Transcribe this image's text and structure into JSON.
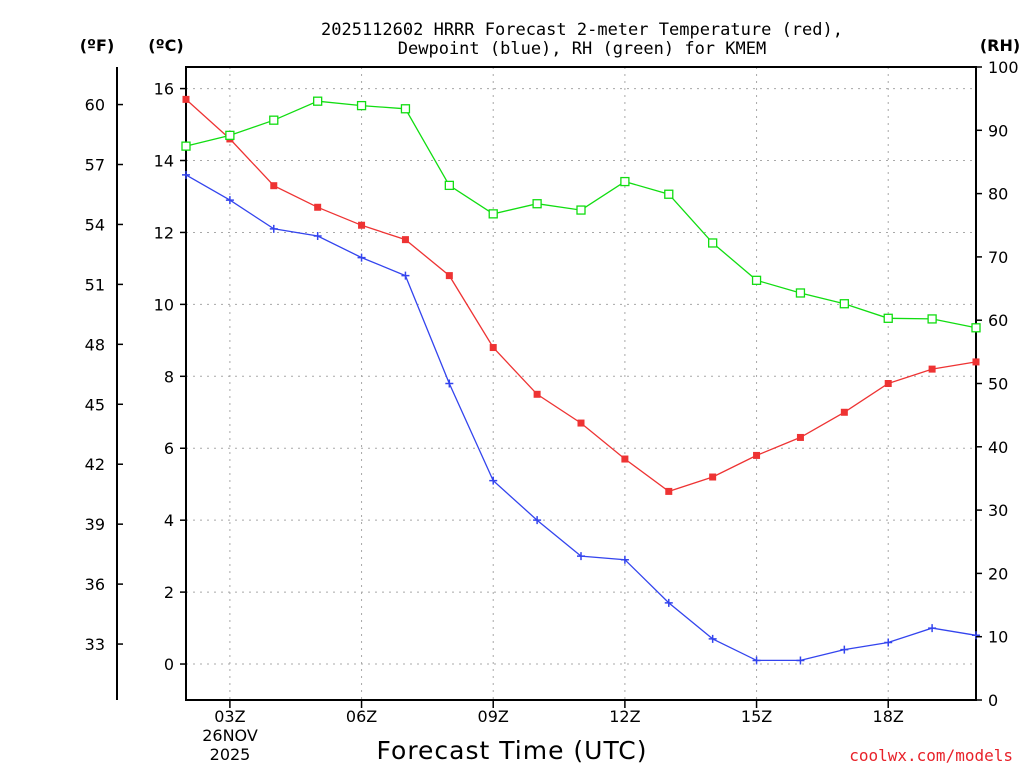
{
  "chart_data": {
    "type": "line",
    "title_line1": "2025112602 HRRR Forecast 2-meter Temperature (red),",
    "title_line2": "Dewpoint (blue), RH (green) for KMEM",
    "xlabel": "Forecast Time (UTC)",
    "date_line1": "26NOV",
    "date_line2": "2025",
    "credit": "coolwx.com/models",
    "hours": [
      2,
      3,
      4,
      5,
      6,
      7,
      8,
      9,
      10,
      11,
      12,
      13,
      14,
      15,
      16,
      17,
      18,
      19,
      20
    ],
    "xlim": [
      2,
      20
    ],
    "x_ticks": [
      {
        "hour": 3,
        "label": "03Z"
      },
      {
        "hour": 6,
        "label": "06Z"
      },
      {
        "hour": 9,
        "label": "09Z"
      },
      {
        "hour": 12,
        "label": "12Z"
      },
      {
        "hour": 15,
        "label": "15Z"
      },
      {
        "hour": 18,
        "label": "18Z"
      }
    ],
    "celsius_axis": {
      "label": "(ºC)",
      "ylim": [
        -1,
        16.6
      ],
      "ticks": [
        0,
        2,
        4,
        6,
        8,
        10,
        12,
        14,
        16
      ]
    },
    "fahrenheit_axis": {
      "label": "(ºF)",
      "ticks": [
        33,
        36,
        39,
        42,
        45,
        48,
        51,
        54,
        57,
        60
      ]
    },
    "rh_axis": {
      "label": "(RH)",
      "ylim": [
        0,
        100
      ],
      "ticks": [
        0,
        10,
        20,
        30,
        40,
        50,
        60,
        70,
        80,
        90,
        100
      ]
    },
    "series": [
      {
        "name": "Temperature",
        "axis": "celsius",
        "color": "#ee3333",
        "marker": "filled-square",
        "values": [
          15.7,
          14.6,
          13.3,
          12.7,
          12.2,
          11.8,
          10.8,
          8.8,
          7.5,
          6.7,
          5.7,
          4.8,
          5.2,
          5.8,
          6.3,
          7.0,
          7.8,
          8.2,
          8.4
        ]
      },
      {
        "name": "Dewpoint",
        "axis": "celsius",
        "color": "#3344ee",
        "marker": "plus",
        "values": [
          13.6,
          12.9,
          12.1,
          11.9,
          11.3,
          10.8,
          7.8,
          5.1,
          4.0,
          3.0,
          2.9,
          1.7,
          0.7,
          0.1,
          0.1,
          0.4,
          0.6,
          1.0,
          0.8
        ]
      },
      {
        "name": "RH",
        "axis": "rh",
        "color": "#11dd11",
        "marker": "open-square",
        "values": [
          87.5,
          89.2,
          91.6,
          94.6,
          93.9,
          93.4,
          81.3,
          76.8,
          78.4,
          77.4,
          81.9,
          79.9,
          72.2,
          66.3,
          64.3,
          62.6,
          60.3,
          60.2,
          58.8
        ]
      }
    ]
  }
}
